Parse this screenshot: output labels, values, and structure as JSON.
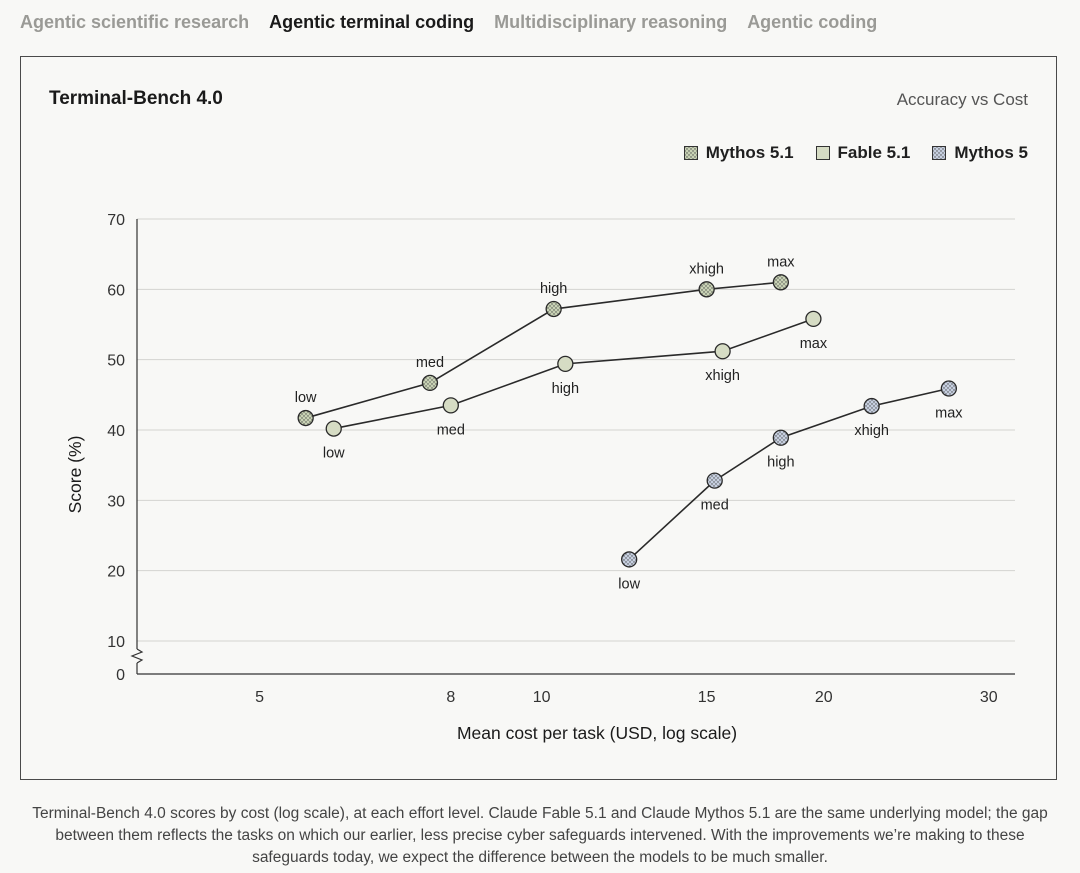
{
  "tabs": [
    {
      "label": "Agentic scientific research",
      "active": false
    },
    {
      "label": "Agentic terminal coding",
      "active": true
    },
    {
      "label": "Multidisciplinary reasoning",
      "active": false
    },
    {
      "label": "Agentic coding",
      "active": false
    }
  ],
  "caption": "Terminal-Bench 4.0 scores by cost (log scale), at each effort level. Claude Fable 5.1 and Claude Mythos 5.1 are the same underlying model; the gap between them reflects the tasks on which our earlier, less precise cyber safeguards intervened. With the improvements we’re making to these safeguards today, we expect the difference between the models to be much smaller.",
  "chart_data": {
    "type": "line",
    "title": "Terminal-Bench 4.0",
    "subtitle": "Accuracy vs Cost",
    "xlabel": "Mean cost per task (USD, log scale)",
    "ylabel": "Score (%)",
    "x_scale": "log",
    "xlim": [
      3.7,
      32
    ],
    "ylim": [
      0,
      70
    ],
    "y_axis_break": true,
    "x_ticks": [
      5,
      8,
      10,
      15,
      20,
      30
    ],
    "y_ticks": [
      0,
      10,
      20,
      30,
      40,
      50,
      60,
      70
    ],
    "grid": "horizontal",
    "legend_position": "top-right",
    "series": [
      {
        "name": "Mythos 5.1",
        "color": "#c8d2b4",
        "pattern": "dotted",
        "points": [
          {
            "x": 5.6,
            "y": 41.7,
            "label": "low",
            "label_pos": "above"
          },
          {
            "x": 7.6,
            "y": 46.7,
            "label": "med",
            "label_pos": "above"
          },
          {
            "x": 10.3,
            "y": 57.2,
            "label": "high",
            "label_pos": "above"
          },
          {
            "x": 15.0,
            "y": 60.0,
            "label": "xhigh",
            "label_pos": "above"
          },
          {
            "x": 18.0,
            "y": 61.0,
            "label": "max",
            "label_pos": "above"
          }
        ]
      },
      {
        "name": "Fable 5.1",
        "color": "#d6dcc4",
        "pattern": "solid",
        "points": [
          {
            "x": 6.0,
            "y": 40.2,
            "label": "low",
            "label_pos": "below"
          },
          {
            "x": 8.0,
            "y": 43.5,
            "label": "med",
            "label_pos": "below"
          },
          {
            "x": 10.6,
            "y": 49.4,
            "label": "high",
            "label_pos": "below"
          },
          {
            "x": 15.6,
            "y": 51.2,
            "label": "xhigh",
            "label_pos": "below"
          },
          {
            "x": 19.5,
            "y": 55.8,
            "label": "max",
            "label_pos": "below"
          }
        ]
      },
      {
        "name": "Mythos 5",
        "color": "#c6cfe0",
        "pattern": "dotted",
        "points": [
          {
            "x": 12.4,
            "y": 21.6,
            "label": "low",
            "label_pos": "below"
          },
          {
            "x": 15.3,
            "y": 32.8,
            "label": "med",
            "label_pos": "below"
          },
          {
            "x": 18.0,
            "y": 38.9,
            "label": "high",
            "label_pos": "below"
          },
          {
            "x": 22.5,
            "y": 43.4,
            "label": "xhigh",
            "label_pos": "below"
          },
          {
            "x": 27.2,
            "y": 45.9,
            "label": "max",
            "label_pos": "below"
          }
        ]
      }
    ]
  }
}
